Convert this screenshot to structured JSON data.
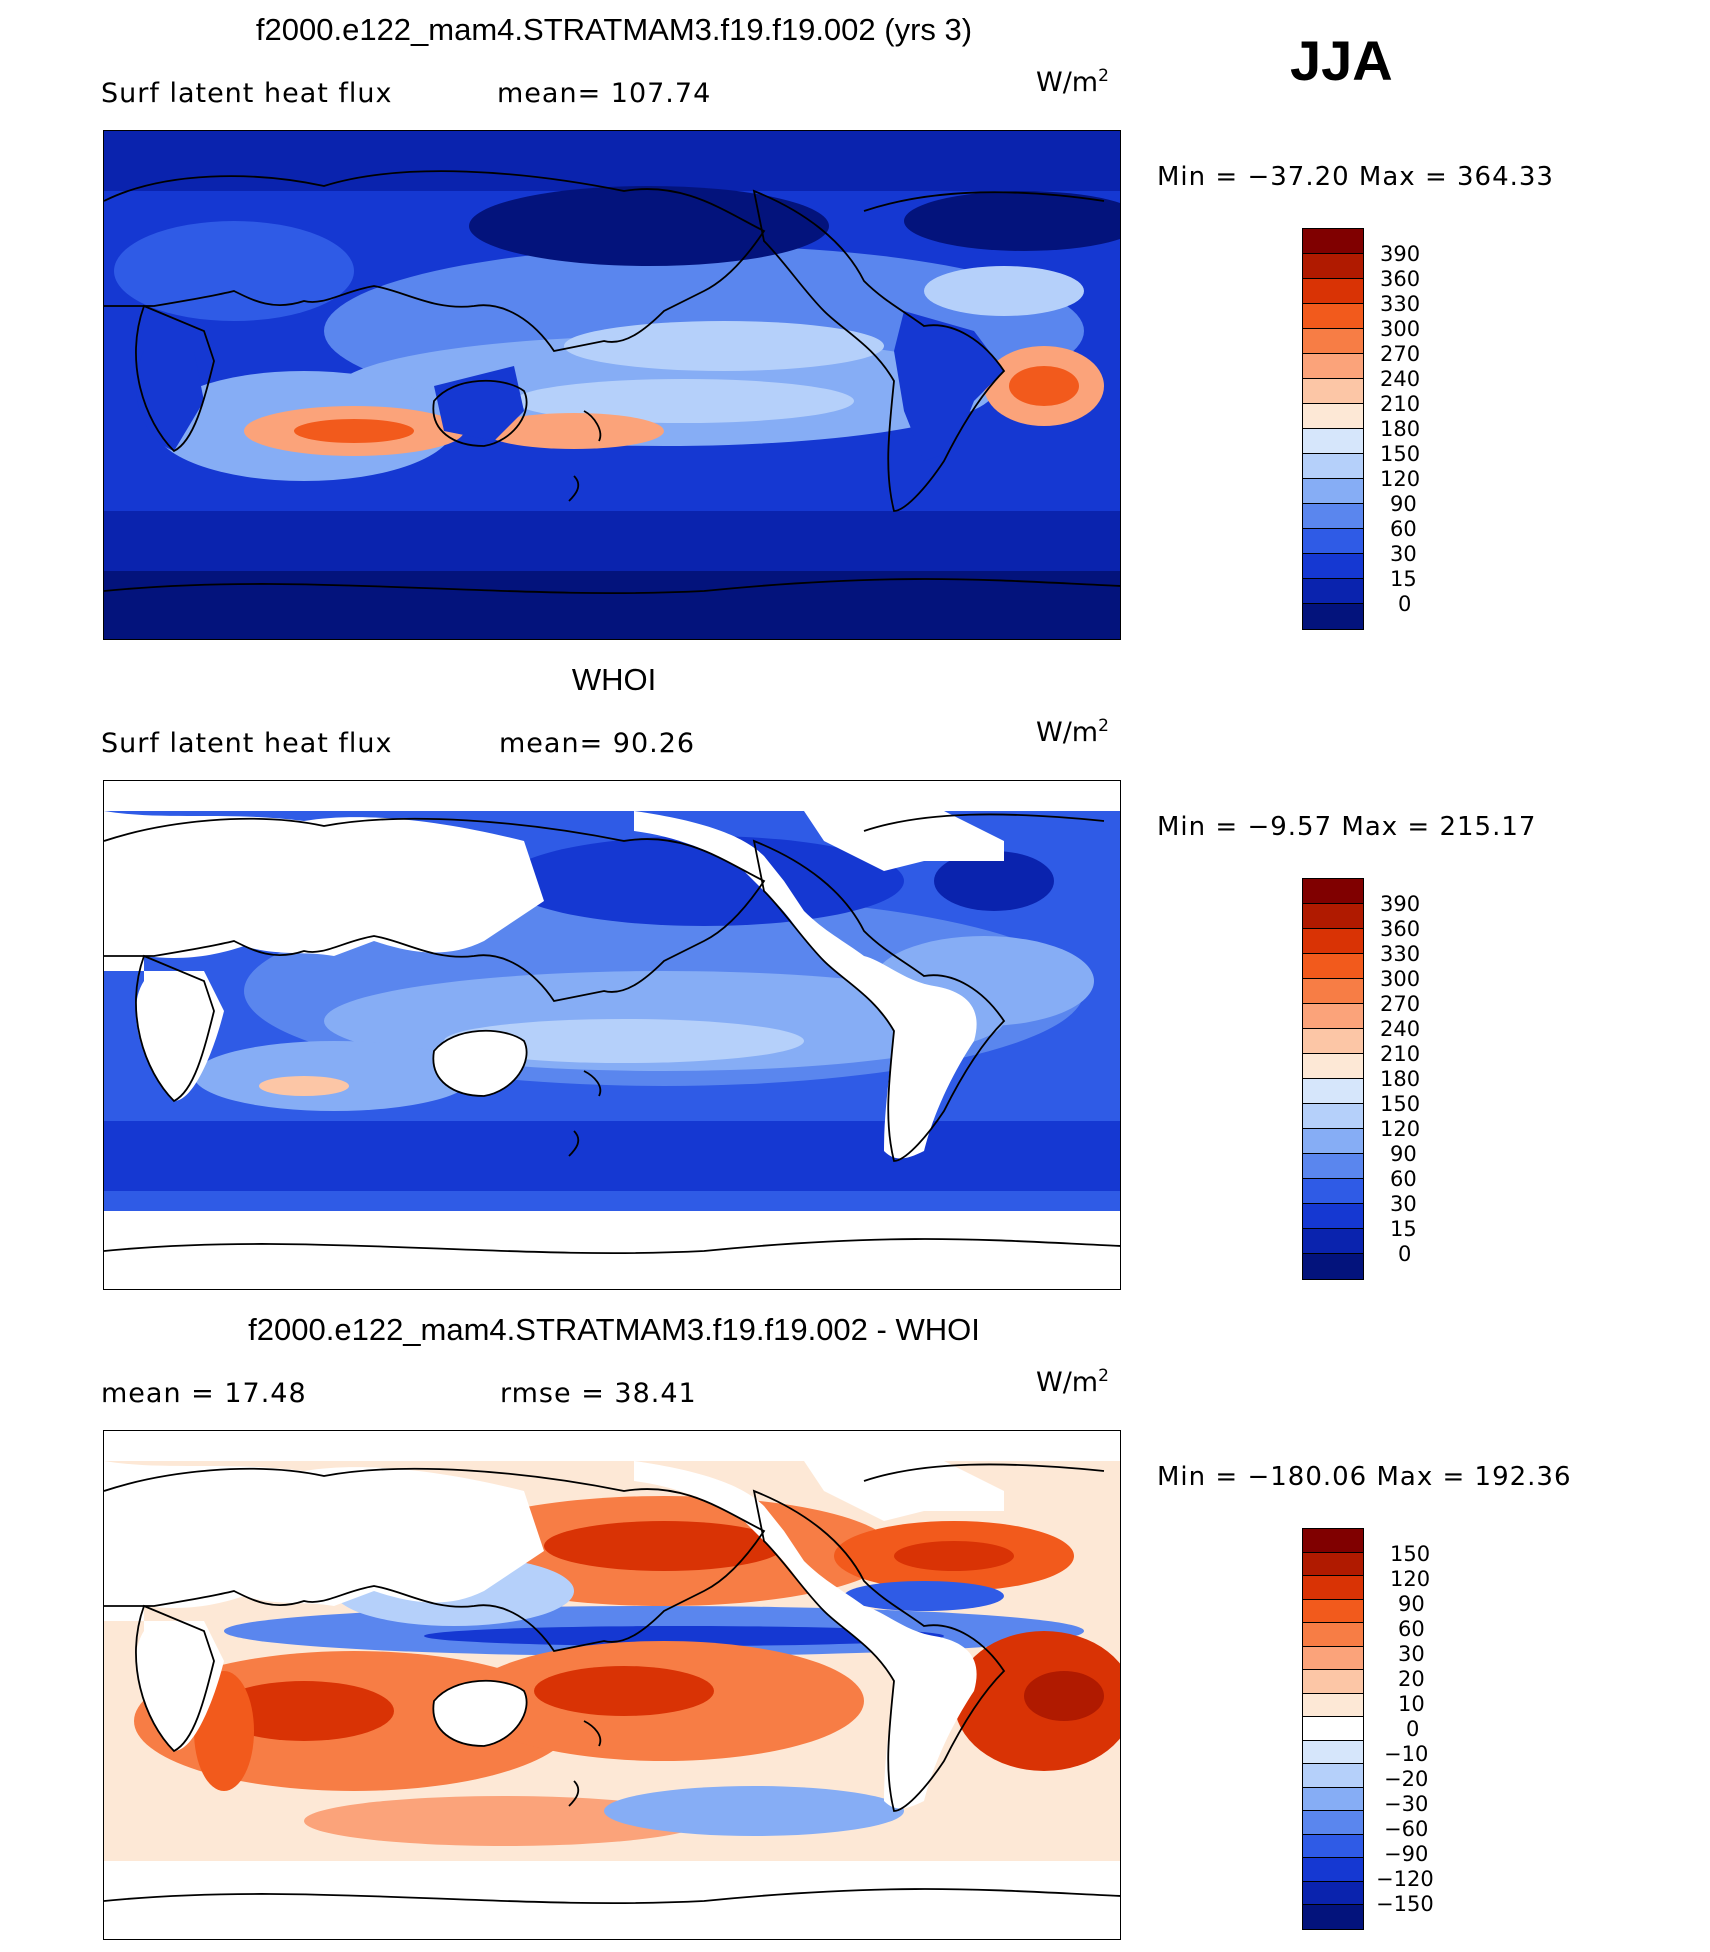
{
  "season": "JJA",
  "panels": [
    {
      "title": "f2000.e122_mam4.STRATMAM3.f19.f19.002 (yrs 3)",
      "left_label": "Surf latent heat flux",
      "mid_label": "mean= 107.74",
      "unit_base": "W/m",
      "unit_exp": "2",
      "minmax": "Min = −37.20 Max = 364.33",
      "ticks": [
        "390",
        "360",
        "330",
        "300",
        "270",
        "240",
        "210",
        "180",
        "150",
        "120",
        "90",
        "60",
        "30",
        "15",
        "0"
      ]
    },
    {
      "title": "WHOI",
      "left_label": "Surf latent heat flux",
      "mid_label": "mean=  90.26",
      "unit_base": "W/m",
      "unit_exp": "2",
      "minmax": "Min =  −9.57 Max = 215.17",
      "ticks": [
        "390",
        "360",
        "330",
        "300",
        "270",
        "240",
        "210",
        "180",
        "150",
        "120",
        "90",
        "60",
        "30",
        "15",
        "0"
      ]
    },
    {
      "title": "f2000.e122_mam4.STRATMAM3.f19.f19.002 - WHOI",
      "left_label": "mean =   17.48",
      "mid_label": "rmse =   38.41",
      "unit_base": "W/m",
      "unit_exp": "2",
      "minmax": "Min = −180.06 Max = 192.36",
      "ticks": [
        "150",
        "120",
        "90",
        "60",
        "30",
        "20",
        "10",
        "0",
        "−10",
        "−20",
        "−30",
        "−60",
        "−90",
        "−120",
        "−150"
      ]
    }
  ],
  "colors": {
    "abs_scale": [
      "#800000",
      "#b01a00",
      "#d93305",
      "#f25a1c",
      "#f77d45",
      "#fba37a",
      "#fcc6a6",
      "#fde8d6",
      "#d6e6fb",
      "#b5d0fa",
      "#86adf5",
      "#5a86ee",
      "#2f5be6",
      "#1538d2",
      "#0a23ae",
      "#03137c"
    ],
    "diff_scale": [
      "#800000",
      "#b01a00",
      "#d93305",
      "#f25a1c",
      "#f77d45",
      "#fba37a",
      "#fcc6a6",
      "#fde8d6",
      "#ffffff",
      "#d6e6fb",
      "#b5d0fa",
      "#86adf5",
      "#5a86ee",
      "#2f5be6",
      "#1538d2",
      "#0a23ae",
      "#03137c"
    ],
    "coast": "#000000"
  }
}
